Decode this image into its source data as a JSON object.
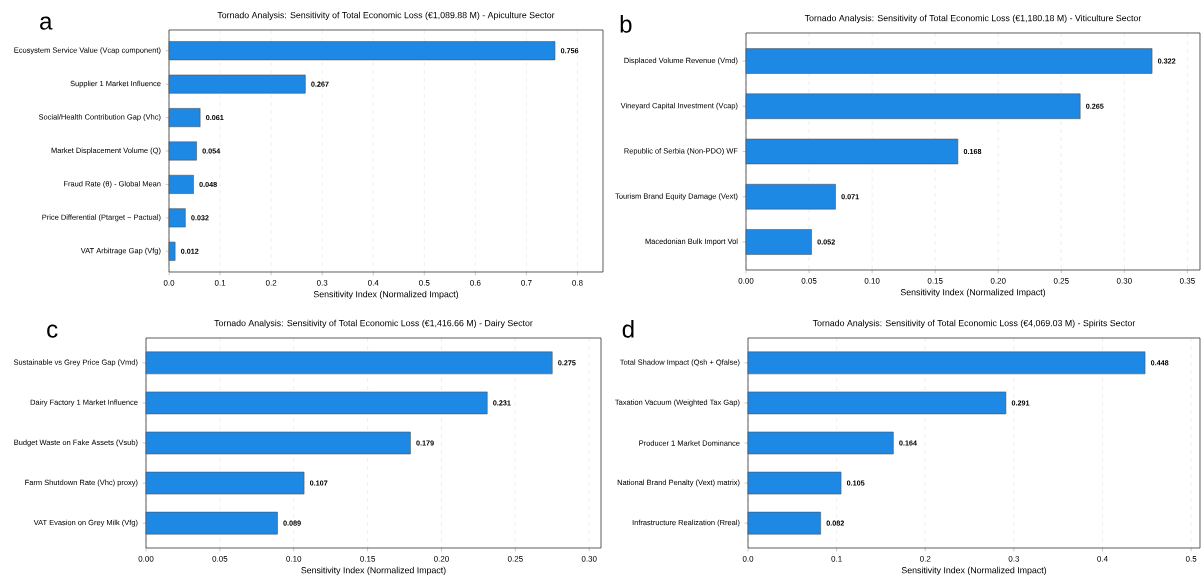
{
  "chart_data": [
    {
      "type": "bar",
      "orientation": "horizontal",
      "title": "Tornado Analysis: Sensitivity of Total Economic Loss (€1,089.88 M) - Apiculture Sector",
      "xlabel": "Sensitivity Index (Normalized Impact)",
      "annotations": [
        "a"
      ],
      "categories": [
        "Ecosystem Service Value (Vcap component)",
        "Supplier 1 Market Influence",
        "Social/Health Contribution Gap (Vhc)",
        "Market Displacement Volume (Q)",
        "Fraud Rate (θ) - Global Mean",
        "Price Differential (Ptarget − Pactual)",
        "VAT Arbitrage Gap (Vfg)"
      ],
      "values": [
        0.756,
        0.267,
        0.061,
        0.054,
        0.048,
        0.032,
        0.012
      ],
      "color": "#1e88e5",
      "data_labels": true,
      "grid": "x",
      "xlim": [
        0,
        0.85
      ],
      "xticks": [
        {
          "value": 0,
          "label": "0.0"
        },
        0.1,
        0.2,
        0.3,
        0.4,
        0.5,
        0.6,
        0.7,
        0.8
      ]
    },
    {
      "type": "bar",
      "orientation": "horizontal",
      "title": "Tornado Analysis: Sensitivity of Total Economic Loss (€1,180.18 M) - Viticulture Sector",
      "xlabel": "Sensitivity Index (Normalized Impact)",
      "annotations": [
        "b"
      ],
      "categories": [
        "Displaced Volume Revenue (Vmd)",
        "Vineyard Capital Investment (Vcap)",
        "Republic of Serbia (Non-PDO) WF",
        "Tourism Brand Equity Damage (Vext)",
        "Macedonian Bulk Import Vol"
      ],
      "values": [
        0.322,
        0.265,
        0.168,
        0.071,
        0.052
      ],
      "color": "#1e88e5",
      "data_labels": true,
      "grid": "x",
      "xlim": [
        0,
        0.36
      ],
      "xticks": [
        {
          "value": 0,
          "label": "0.00"
        },
        0.05,
        {
          "value": 0.1,
          "label": "0.10"
        },
        0.15,
        {
          "value": 0.2,
          "label": "0.20"
        },
        0.25,
        {
          "value": 0.3,
          "label": "0.30"
        },
        0.35
      ]
    },
    {
      "type": "bar",
      "orientation": "horizontal",
      "title": "Tornado Analysis: Sensitivity of Total Economic Loss (€1,416.66 M) - Dairy Sector",
      "xlabel": "Sensitivity Index (Normalized Impact)",
      "annotations": [
        "c"
      ],
      "categories": [
        "Sustainable vs Grey Price Gap (Vmd)",
        "Dairy Factory 1 Market Influence",
        "Budget Waste on Fake Assets (Vsub)",
        "Farm Shutdown Rate (Vhc) proxy)",
        "VAT Evasion on Grey Milk (Vfg)"
      ],
      "values": [
        0.275,
        0.231,
        0.179,
        0.107,
        0.089
      ],
      "color": "#1e88e5",
      "data_labels": true,
      "grid": "x",
      "xlim": [
        0,
        0.308
      ],
      "xticks": [
        {
          "value": 0,
          "label": "0.00"
        },
        0.05,
        {
          "value": 0.1,
          "label": "0.10"
        },
        0.15,
        {
          "value": 0.2,
          "label": "0.20"
        },
        0.25,
        {
          "value": 0.3,
          "label": "0.30"
        }
      ]
    },
    {
      "type": "bar",
      "orientation": "horizontal",
      "title": "Tornado Analysis: Sensitivity of Total Economic Loss (€4,069.03 M) - Spirits Sector",
      "xlabel": "Sensitivity Index (Normalized Impact)",
      "annotations": [
        "d"
      ],
      "categories": [
        "Total Shadow Impact (Qsh + Qfalse)",
        "Taxation Vacuum (Weighted Tax Gap)",
        "Producer 1 Market Dominance",
        "National Brand Penalty (Vext) matrix)",
        "Infrastructure Realization (Rreal)"
      ],
      "values": [
        0.448,
        0.291,
        0.164,
        0.105,
        0.082
      ],
      "color": "#1e88e5",
      "data_labels": true,
      "grid": "x",
      "xlim": [
        0,
        0.51
      ],
      "xticks": [
        {
          "value": 0,
          "label": "0.0"
        },
        0.1,
        0.2,
        0.3,
        0.4,
        0.5
      ]
    }
  ]
}
